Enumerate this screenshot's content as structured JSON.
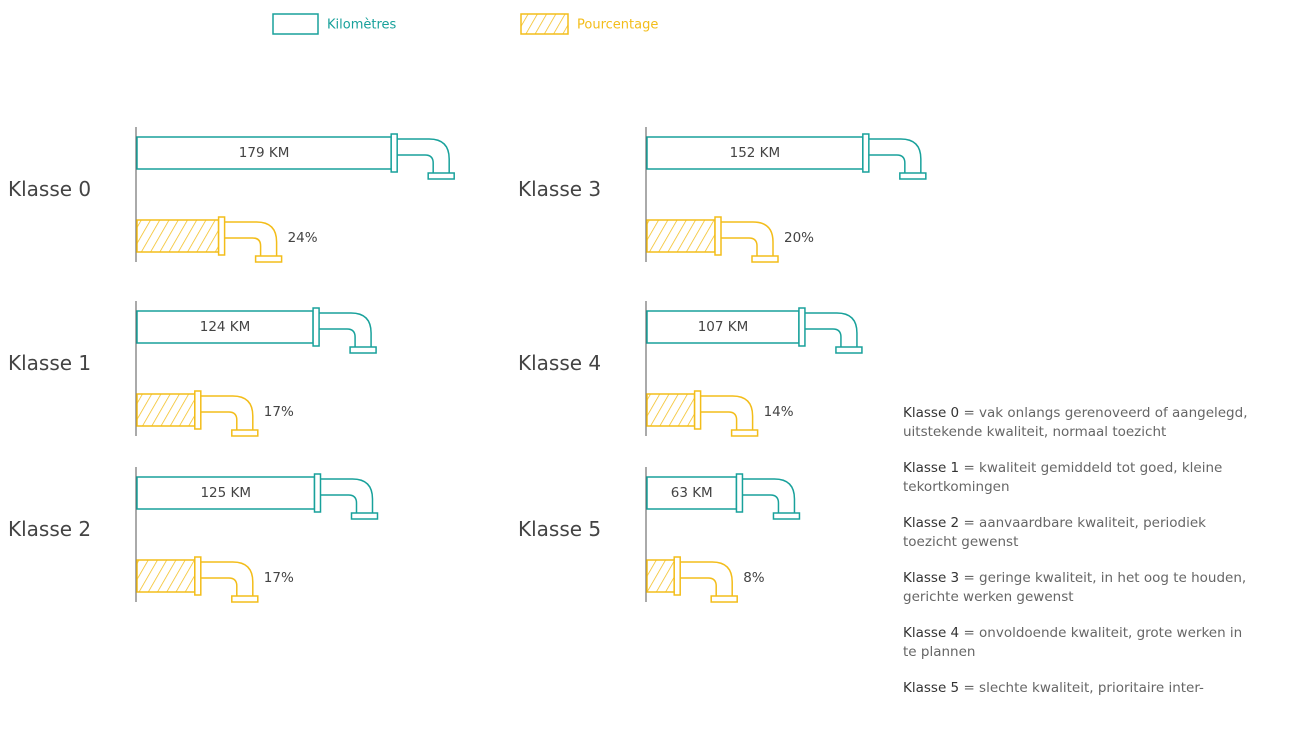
{
  "chart_data": {
    "type": "pipe-bar",
    "categories": [
      "Klasse 0",
      "Klasse 1",
      "Klasse 2",
      "Klasse 3",
      "Klasse 4",
      "Klasse 5"
    ],
    "series": [
      {
        "name": "Kilomètres",
        "color": "#18a19b",
        "values": [
          179,
          124,
          125,
          152,
          107,
          63
        ],
        "value_labels": [
          "179 KM",
          "124 KM",
          "125 KM",
          "152 KM",
          "107 KM",
          "63 KM"
        ]
      },
      {
        "name": "Pourcentage",
        "color": "#f3bd1a",
        "values": [
          24,
          17,
          17,
          20,
          14,
          8
        ],
        "value_labels": [
          "24%",
          "17%",
          "17%",
          "20%",
          "14%",
          "8%"
        ]
      }
    ],
    "annotations": [
      "= vak onlangs gerenoveerd of aangelegd, uitstekende kwaliteit, normaal toezicht",
      "= kwaliteit gemiddeld tot goed, kleine tekortkomingen",
      "= aanvaardbare kwaliteit, periodiek toezicht gewenst",
      "= geringe kwaliteit, in het oog te houden, gerichte werken gewenst",
      "= onvoldoende kwaliteit, grote werken in te plannen",
      "= slechte kwaliteit, prioritaire inter-"
    ]
  }
}
